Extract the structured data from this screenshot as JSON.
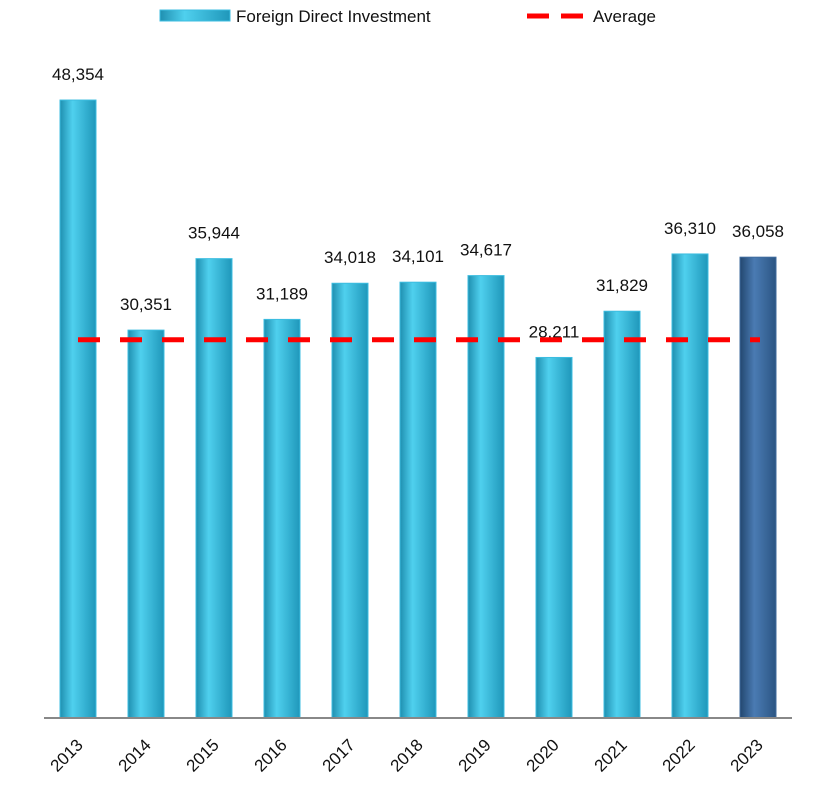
{
  "chart_data": {
    "type": "bar",
    "categories": [
      "2013",
      "2014",
      "2015",
      "2016",
      "2017",
      "2018",
      "2019",
      "2020",
      "2021",
      "2022",
      "2023"
    ],
    "series": [
      {
        "name": "Foreign Direct Investment",
        "values": [
          48354,
          30351,
          35944,
          31189,
          34018,
          34101,
          34617,
          28211,
          31829,
          36310,
          36058
        ],
        "value_labels": [
          "48,354",
          "30,351",
          "35,944",
          "31,189",
          "34,018",
          "34,101",
          "34,617",
          "28,211",
          "31,829",
          "36,310",
          "36,058"
        ],
        "colors": [
          "#3cbde0",
          "#3cbde0",
          "#3cbde0",
          "#3cbde0",
          "#3cbde0",
          "#3cbde0",
          "#3cbde0",
          "#3cbde0",
          "#3cbde0",
          "#3cbde0",
          "#3f6b9e"
        ]
      }
    ],
    "average": {
      "name": "Average",
      "value": 29600,
      "color": "#ff0000"
    },
    "ylim": [
      0,
      50000
    ]
  }
}
